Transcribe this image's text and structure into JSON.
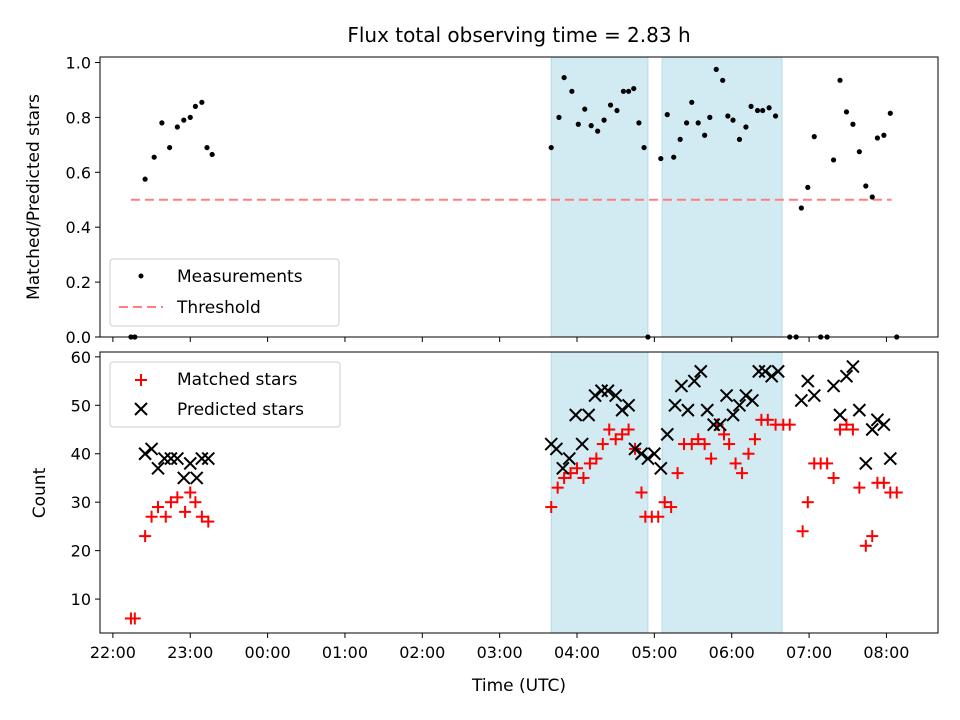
{
  "title": "Flux total observing time = 2.83 h",
  "colors": {
    "measurement": "#000000",
    "threshold": "#ff7f7f",
    "matched": "#ff0000",
    "predicted": "#000000",
    "shade": "#add8e6"
  },
  "chart_data": [
    {
      "type": "scatter",
      "panel": "top",
      "ylabel": "Matched/Predicted stars",
      "xlim": [
        "21:50",
        "08:40"
      ],
      "ylim": [
        0,
        1.02
      ],
      "yticks": [
        "0.0",
        "0.2",
        "0.4",
        "0.6",
        "0.8",
        "1.0"
      ],
      "legend": "lower-left",
      "series": [
        {
          "name": "Measurements",
          "marker": "dot",
          "points": [
            [
              "22:14",
              0.0
            ],
            [
              "22:17",
              0.0
            ],
            [
              "22:25",
              0.575
            ],
            [
              "22:32",
              0.655
            ],
            [
              "22:38",
              0.78
            ],
            [
              "22:44",
              0.69
            ],
            [
              "22:50",
              0.765
            ],
            [
              "22:55",
              0.79
            ],
            [
              "23:00",
              0.8
            ],
            [
              "23:04",
              0.84
            ],
            [
              "23:09",
              0.855
            ],
            [
              "23:13",
              0.69
            ],
            [
              "23:17",
              0.665
            ],
            [
              "03:40",
              0.69
            ],
            [
              "03:46",
              0.8
            ],
            [
              "03:50",
              0.945
            ],
            [
              "03:56",
              0.895
            ],
            [
              "04:01",
              0.775
            ],
            [
              "04:06",
              0.83
            ],
            [
              "04:11",
              0.77
            ],
            [
              "04:16",
              0.75
            ],
            [
              "04:21",
              0.79
            ],
            [
              "04:26",
              0.845
            ],
            [
              "04:31",
              0.825
            ],
            [
              "04:36",
              0.895
            ],
            [
              "04:40",
              0.895
            ],
            [
              "04:44",
              0.905
            ],
            [
              "04:48",
              0.78
            ],
            [
              "04:52",
              0.69
            ],
            [
              "04:55",
              0.0
            ],
            [
              "05:05",
              0.65
            ],
            [
              "05:10",
              0.81
            ],
            [
              "05:15",
              0.655
            ],
            [
              "05:20",
              0.72
            ],
            [
              "05:25",
              0.78
            ],
            [
              "05:29",
              0.855
            ],
            [
              "05:34",
              0.78
            ],
            [
              "05:39",
              0.735
            ],
            [
              "05:43",
              0.8
            ],
            [
              "05:48",
              0.975
            ],
            [
              "05:53",
              0.935
            ],
            [
              "05:57",
              0.805
            ],
            [
              "06:01",
              0.79
            ],
            [
              "06:06",
              0.72
            ],
            [
              "06:11",
              0.765
            ],
            [
              "06:15",
              0.84
            ],
            [
              "06:20",
              0.825
            ],
            [
              "06:24",
              0.825
            ],
            [
              "06:29",
              0.835
            ],
            [
              "06:34",
              0.805
            ],
            [
              "06:45",
              0.0
            ],
            [
              "06:50",
              0.0
            ],
            [
              "06:54",
              0.47
            ],
            [
              "06:59",
              0.545
            ],
            [
              "07:04",
              0.73
            ],
            [
              "07:09",
              0.0
            ],
            [
              "07:14",
              0.0
            ],
            [
              "07:19",
              0.645
            ],
            [
              "07:24",
              0.935
            ],
            [
              "07:29",
              0.82
            ],
            [
              "07:34",
              0.775
            ],
            [
              "07:39",
              0.675
            ],
            [
              "07:44",
              0.55
            ],
            [
              "07:49",
              0.51
            ],
            [
              "07:53",
              0.725
            ],
            [
              "07:58",
              0.735
            ],
            [
              "08:03",
              0.815
            ],
            [
              "08:08",
              0.0
            ]
          ]
        },
        {
          "name": "Threshold",
          "style": "dashed",
          "points": [
            [
              "22:14",
              0.5
            ],
            [
              "08:04",
              0.5
            ]
          ]
        }
      ],
      "shaded_intervals": [
        [
          "03:40",
          "04:55"
        ],
        [
          "05:06",
          "06:39"
        ]
      ]
    },
    {
      "type": "scatter",
      "panel": "bottom",
      "xlabel": "Time (UTC)",
      "ylabel": "Count",
      "xlim": [
        "21:50",
        "08:40"
      ],
      "ylim": [
        3,
        61
      ],
      "yticks": [
        "10",
        "20",
        "30",
        "40",
        "50",
        "60"
      ],
      "xticks": [
        "22:00",
        "23:00",
        "00:00",
        "01:00",
        "02:00",
        "03:00",
        "04:00",
        "05:00",
        "06:00",
        "07:00",
        "08:00"
      ],
      "legend": "upper-left",
      "series": [
        {
          "name": "Matched stars",
          "marker": "plus",
          "points": [
            [
              "22:14",
              6
            ],
            [
              "22:17",
              6
            ],
            [
              "22:25",
              23
            ],
            [
              "22:30",
              27
            ],
            [
              "22:35",
              29
            ],
            [
              "22:41",
              27
            ],
            [
              "22:45",
              30
            ],
            [
              "22:50",
              31
            ],
            [
              "22:56",
              28
            ],
            [
              "23:00",
              32
            ],
            [
              "23:04",
              30
            ],
            [
              "23:09",
              27
            ],
            [
              "23:14",
              26
            ],
            [
              "03:40",
              29
            ],
            [
              "03:45",
              33
            ],
            [
              "03:50",
              35
            ],
            [
              "03:55",
              36
            ],
            [
              "04:00",
              37
            ],
            [
              "04:05",
              35
            ],
            [
              "04:10",
              38
            ],
            [
              "04:15",
              39
            ],
            [
              "04:20",
              42
            ],
            [
              "04:25",
              45
            ],
            [
              "04:30",
              43
            ],
            [
              "04:35",
              44
            ],
            [
              "04:40",
              45
            ],
            [
              "04:45",
              41
            ],
            [
              "04:50",
              32
            ],
            [
              "04:53",
              27
            ],
            [
              "04:58",
              27
            ],
            [
              "05:03",
              27
            ],
            [
              "05:08",
              30
            ],
            [
              "05:13",
              29
            ],
            [
              "05:18",
              36
            ],
            [
              "05:23",
              42
            ],
            [
              "05:29",
              42
            ],
            [
              "05:34",
              43
            ],
            [
              "05:39",
              42
            ],
            [
              "05:44",
              39
            ],
            [
              "05:49",
              46
            ],
            [
              "05:54",
              44
            ],
            [
              "05:58",
              42
            ],
            [
              "06:03",
              38
            ],
            [
              "06:08",
              36
            ],
            [
              "06:13",
              40
            ],
            [
              "06:18",
              43
            ],
            [
              "06:23",
              47
            ],
            [
              "06:28",
              47
            ],
            [
              "06:34",
              46
            ],
            [
              "06:40",
              46
            ],
            [
              "06:45",
              46
            ],
            [
              "06:55",
              24
            ],
            [
              "06:59",
              30
            ],
            [
              "07:04",
              38
            ],
            [
              "07:09",
              38
            ],
            [
              "07:14",
              38
            ],
            [
              "07:19",
              35
            ],
            [
              "07:24",
              45
            ],
            [
              "07:29",
              46
            ],
            [
              "07:34",
              45
            ],
            [
              "07:39",
              33
            ],
            [
              "07:44",
              21
            ],
            [
              "07:49",
              23
            ],
            [
              "07:53",
              34
            ],
            [
              "07:58",
              34
            ],
            [
              "08:03",
              32
            ],
            [
              "08:08",
              32
            ]
          ]
        },
        {
          "name": "Predicted stars",
          "marker": "x",
          "points": [
            [
              "22:25",
              40
            ],
            [
              "22:30",
              41
            ],
            [
              "22:35",
              37
            ],
            [
              "22:40",
              39
            ],
            [
              "22:45",
              39
            ],
            [
              "22:50",
              39
            ],
            [
              "22:55",
              35
            ],
            [
              "23:00",
              38
            ],
            [
              "23:05",
              35
            ],
            [
              "23:09",
              39
            ],
            [
              "23:14",
              39
            ],
            [
              "03:40",
              42
            ],
            [
              "03:44",
              41
            ],
            [
              "03:49",
              37
            ],
            [
              "03:54",
              39
            ],
            [
              "03:59",
              48
            ],
            [
              "04:04",
              42
            ],
            [
              "04:09",
              48
            ],
            [
              "04:14",
              52
            ],
            [
              "04:19",
              53
            ],
            [
              "04:24",
              53
            ],
            [
              "04:30",
              52
            ],
            [
              "04:35",
              49
            ],
            [
              "04:40",
              50
            ],
            [
              "04:45",
              41
            ],
            [
              "04:50",
              40
            ],
            [
              "04:55",
              39
            ],
            [
              "05:00",
              40
            ],
            [
              "05:05",
              37
            ],
            [
              "05:10",
              44
            ],
            [
              "05:16",
              50
            ],
            [
              "05:21",
              54
            ],
            [
              "05:26",
              49
            ],
            [
              "05:31",
              55
            ],
            [
              "05:36",
              57
            ],
            [
              "05:41",
              49
            ],
            [
              "05:46",
              46
            ],
            [
              "05:51",
              46
            ],
            [
              "05:56",
              52
            ],
            [
              "06:01",
              48
            ],
            [
              "06:06",
              50
            ],
            [
              "06:11",
              52
            ],
            [
              "06:16",
              51
            ],
            [
              "06:21",
              57
            ],
            [
              "06:26",
              57
            ],
            [
              "06:31",
              56
            ],
            [
              "06:36",
              57
            ],
            [
              "06:54",
              51
            ],
            [
              "06:59",
              55
            ],
            [
              "07:04",
              52
            ],
            [
              "07:19",
              54
            ],
            [
              "07:24",
              48
            ],
            [
              "07:29",
              56
            ],
            [
              "07:34",
              58
            ],
            [
              "07:39",
              49
            ],
            [
              "07:44",
              38
            ],
            [
              "07:49",
              45
            ],
            [
              "07:53",
              47
            ],
            [
              "07:58",
              46
            ],
            [
              "08:03",
              39
            ]
          ]
        }
      ],
      "shaded_intervals": [
        [
          "03:40",
          "04:55"
        ],
        [
          "05:06",
          "06:39"
        ]
      ]
    }
  ]
}
